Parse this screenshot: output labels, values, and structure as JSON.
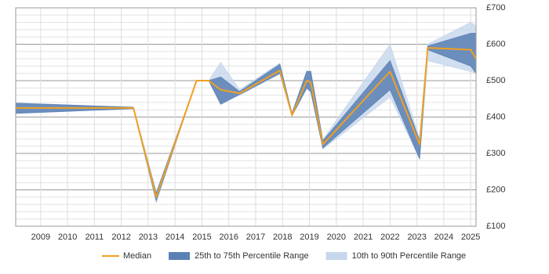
{
  "chart_data": {
    "type": "line",
    "x": [
      2008.07,
      2012.45,
      2013.3,
      2014.8,
      2015.25,
      2015.7,
      2016.4,
      2017.9,
      2018.35,
      2018.9,
      2019.05,
      2019.5,
      2022.0,
      2023.1,
      2023.4,
      2025.0,
      2025.2
    ],
    "xlim": [
      2008.07,
      2025.2
    ],
    "xticks": [
      2009,
      2010,
      2011,
      2012,
      2013,
      2014,
      2015,
      2016,
      2017,
      2018,
      2019,
      2020,
      2021,
      2022,
      2023,
      2024,
      2025
    ],
    "ylim": [
      100,
      700
    ],
    "yticks": [
      {
        "value": 100,
        "label": "£100"
      },
      {
        "value": 200,
        "label": "£200"
      },
      {
        "value": 300,
        "label": "£300"
      },
      {
        "value": 400,
        "label": "£400"
      },
      {
        "value": 500,
        "label": "£500"
      },
      {
        "value": 600,
        "label": "£600"
      },
      {
        "value": 700,
        "label": "£700"
      }
    ],
    "grid": true,
    "legend": "bottom",
    "series": [
      {
        "name": "Median",
        "color": "#f0a020",
        "values": [
          425,
          425,
          180,
          500,
          500,
          475,
          465,
          528,
          405,
          500,
          495,
          325,
          525,
          325,
          590,
          585,
          560
        ]
      },
      {
        "name": "25th to 75th Percentile Range",
        "color": "#5a80b4",
        "lower": [
          410,
          423,
          170,
          500,
          500,
          435,
          462,
          520,
          403,
          480,
          470,
          315,
          475,
          285,
          585,
          540,
          520
        ],
        "upper": [
          438,
          427,
          190,
          500,
          500,
          510,
          470,
          545,
          410,
          525,
          525,
          335,
          555,
          335,
          595,
          630,
          630
        ]
      },
      {
        "name": "10th to 90th Percentile Range",
        "color": "#c6d7ec",
        "lower": [
          410,
          423,
          165,
          500,
          500,
          440,
          460,
          518,
          403,
          478,
          468,
          312,
          455,
          285,
          555,
          525,
          520
        ],
        "upper": [
          438,
          427,
          195,
          500,
          500,
          550,
          475,
          548,
          412,
          527,
          527,
          338,
          600,
          340,
          600,
          660,
          650
        ]
      }
    ]
  }
}
